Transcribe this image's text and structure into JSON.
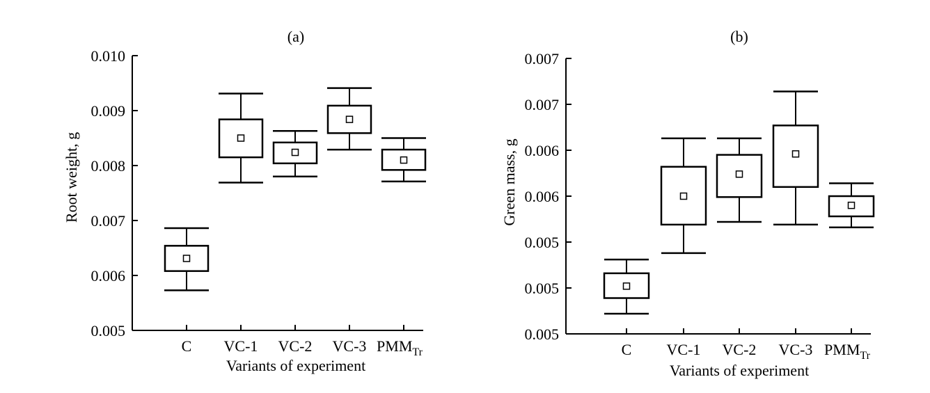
{
  "chart_data": [
    {
      "panel_label": "(a)",
      "type": "box",
      "ylabel": "Root weight, g",
      "xlabel": "Variants of experiment",
      "y_ticks": [
        "0.005",
        "0.006",
        "0.007",
        "0.008",
        "0.009",
        "0.010"
      ],
      "ylim": [
        0.005,
        0.01
      ],
      "categories": [
        "C",
        "VC-1",
        "VC-2",
        "VC-3",
        "PMM"
      ],
      "last_category_subscript": "Tr",
      "boxes": [
        {
          "category": "C",
          "whisker_low": 0.00573,
          "box_low": 0.00608,
          "mean": 0.00631,
          "box_high": 0.00654,
          "whisker_high": 0.00686
        },
        {
          "category": "VC-1",
          "whisker_low": 0.00769,
          "box_low": 0.00815,
          "mean": 0.0085,
          "box_high": 0.00884,
          "whisker_high": 0.00931
        },
        {
          "category": "VC-2",
          "whisker_low": 0.0078,
          "box_low": 0.00804,
          "mean": 0.00824,
          "box_high": 0.00842,
          "whisker_high": 0.00863
        },
        {
          "category": "VC-3",
          "whisker_low": 0.00829,
          "box_low": 0.00859,
          "mean": 0.00884,
          "box_high": 0.00909,
          "whisker_high": 0.00941
        },
        {
          "category": "PMM",
          "whisker_low": 0.00771,
          "box_low": 0.00792,
          "mean": 0.0081,
          "box_high": 0.00829,
          "whisker_high": 0.0085
        }
      ]
    },
    {
      "panel_label": "(b)",
      "type": "box",
      "ylabel": "Green mass, g",
      "xlabel": "Variants of experiment",
      "y_ticks": [
        "0.005",
        "0.005",
        "0.005",
        "0.006",
        "0.006",
        "0.007",
        "0.007"
      ],
      "ylim": [
        0.0045,
        0.0075
      ],
      "categories": [
        "C",
        "VC-1",
        "VC-2",
        "VC-3",
        "PMM"
      ],
      "last_category_subscript": "Tr",
      "boxes": [
        {
          "category": "C",
          "whisker_low": 0.00472,
          "box_low": 0.00489,
          "mean": 0.00502,
          "box_high": 0.00516,
          "whisker_high": 0.00531
        },
        {
          "category": "VC-1",
          "whisker_low": 0.00538,
          "box_low": 0.00569,
          "mean": 0.006,
          "box_high": 0.00632,
          "whisker_high": 0.00663
        },
        {
          "category": "VC-2",
          "whisker_low": 0.00572,
          "box_low": 0.00599,
          "mean": 0.00624,
          "box_high": 0.00645,
          "whisker_high": 0.00663
        },
        {
          "category": "VC-3",
          "whisker_low": 0.00569,
          "box_low": 0.0061,
          "mean": 0.00646,
          "box_high": 0.00677,
          "whisker_high": 0.00714
        },
        {
          "category": "PMM",
          "whisker_low": 0.00566,
          "box_low": 0.00578,
          "mean": 0.0059,
          "box_high": 0.006,
          "whisker_high": 0.00614
        }
      ]
    }
  ]
}
